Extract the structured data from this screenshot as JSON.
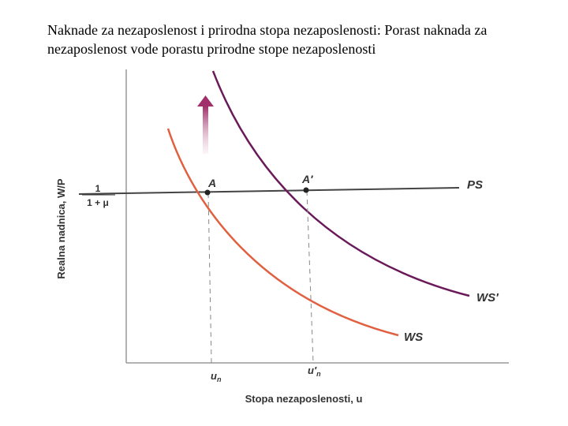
{
  "title": "Naknade za nezaposlenost i prirodna stopa nezaposlenosti: Porast naknada za nezaposlenost vode porastu prirodne stope nezaposlenosti",
  "diagram": {
    "y_axis_label": "Realna nadnica, W/P",
    "x_axis_label": "Stopa nezaposlenosti, u",
    "y_tick": {
      "numerator": "1",
      "denominator": "1 + μ"
    },
    "x_ticks": [
      {
        "base": "u",
        "sub": "n"
      },
      {
        "base": "u′",
        "sub": "n"
      }
    ],
    "curves": [
      {
        "label": "PS"
      },
      {
        "label": "WS"
      },
      {
        "label": "WS′"
      }
    ],
    "points": [
      {
        "label": "A"
      },
      {
        "label": "A′"
      }
    ]
  }
}
